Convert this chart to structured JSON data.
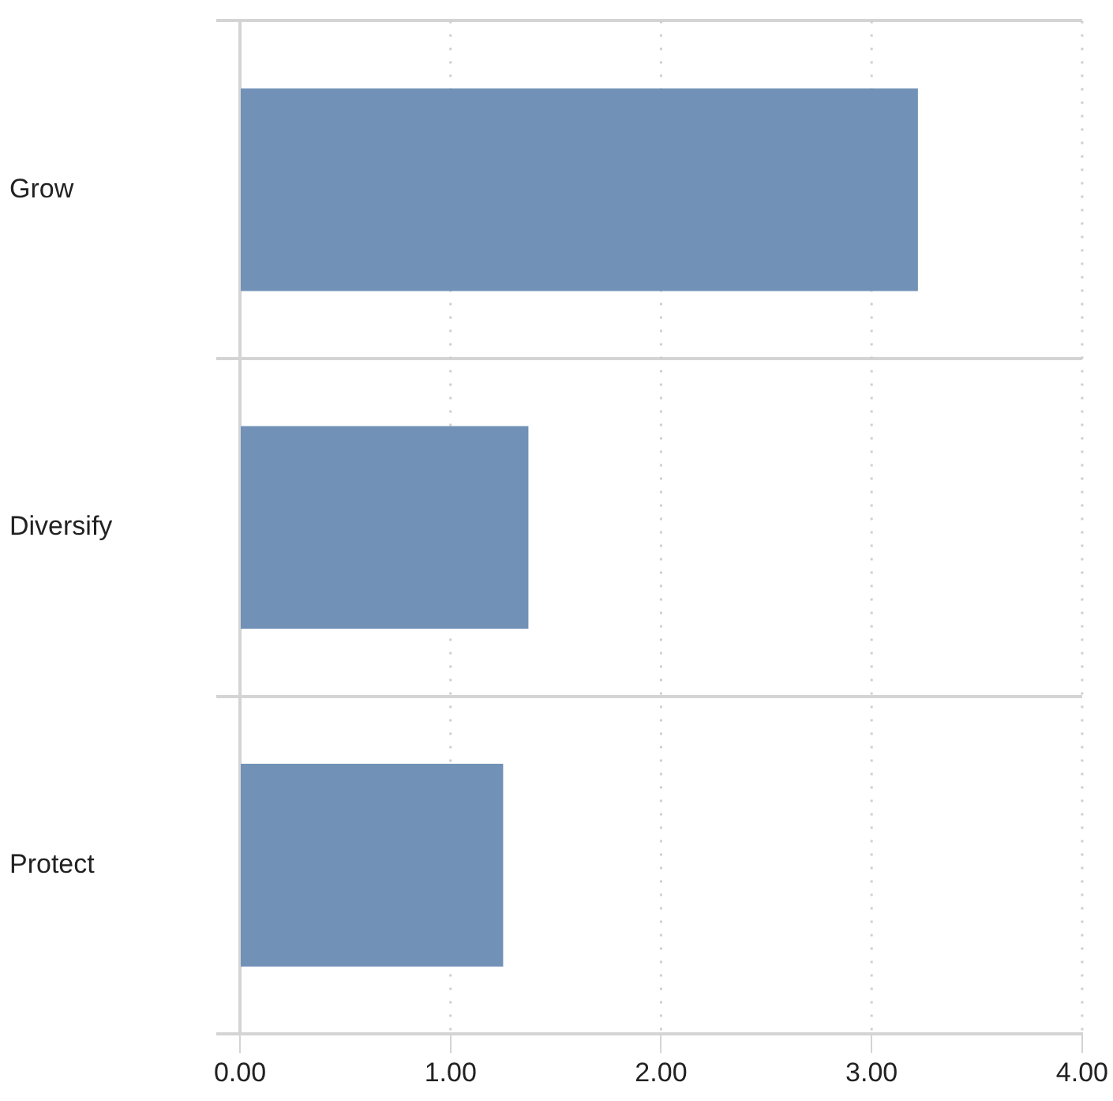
{
  "chart_data": {
    "type": "bar",
    "orientation": "horizontal",
    "categories": [
      "Grow",
      "Diversify",
      "Protect"
    ],
    "values": [
      3.22,
      1.37,
      1.25
    ],
    "color": "#7191b7",
    "xlim": [
      0,
      4
    ],
    "xticks": [
      {
        "value": 0,
        "label": "0.00"
      },
      {
        "value": 1,
        "label": "1.00"
      },
      {
        "value": 2,
        "label": "2.00"
      },
      {
        "value": 3,
        "label": "3.00"
      },
      {
        "value": 4,
        "label": "4.00"
      }
    ],
    "grid": true,
    "legend": false
  }
}
